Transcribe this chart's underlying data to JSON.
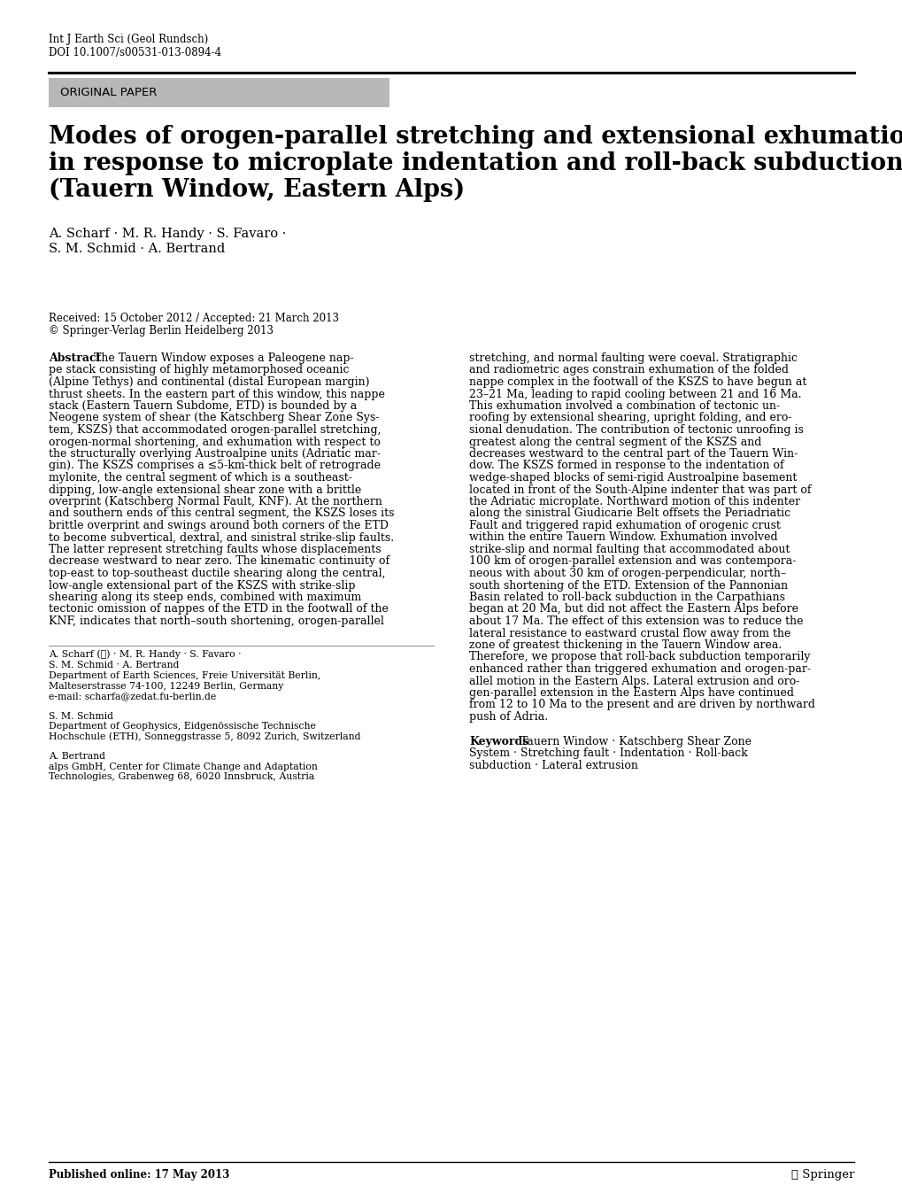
{
  "journal_line1": "Int J Earth Sci (Geol Rundsch)",
  "journal_line2": "DOI 10.1007/s00531-013-0894-4",
  "original_paper_label": "ORIGINAL PAPER",
  "title_line1": "Modes of orogen-parallel stretching and extensional exhumation",
  "title_line2": "in response to microplate indentation and roll-back subduction",
  "title_line3": "(Tauern Window, Eastern Alps)",
  "authors_line1": "A. Scharf · M. R. Handy · S. Favaro ·",
  "authors_line2": "S. M. Schmid · A. Bertrand",
  "received_line": "Received: 15 October 2012 / Accepted: 21 March 2013",
  "copyright_line": "© Springer-Verlag Berlin Heidelberg 2013",
  "abstract_label": "Abstract",
  "abstract_col1": "The Tauern Window exposes a Paleogene nap-\npe stack consisting of highly metamorphosed oceanic\n(Alpine Tethys) and continental (distal European margin)\nthrust sheets. In the eastern part of this window, this nappe\nstack (Eastern Tauern Subdome, ETD) is bounded by a\nNeogene system of shear (the Katschberg Shear Zone Sys-\ntem, KSZS) that accommodated orogen-parallel stretching,\norogen-normal shortening, and exhumation with respect to\nthe structurally overlying Austroalpine units (Adriatic mar-\ngin). The KSZS comprises a ≤5-km-thick belt of retrograde\nmylonite, the central segment of which is a southeast-\ndipping, low-angle extensional shear zone with a brittle\noverprint (Katschberg Normal Fault, KNF). At the northern\nand southern ends of this central segment, the KSZS loses its\nbrittle overprint and swings around both corners of the ETD\nto become subvertical, dextral, and sinistral strike-slip faults.\nThe latter represent stretching faults whose displacements\ndecrease westward to near zero. The kinematic continuity of\ntop-east to top-southeast ductile shearing along the central,\nlow-angle extensional part of the KSZS with strike-slip\nshearing along its steep ends, combined with maximum\ntectonic omission of nappes of the ETD in the footwall of the\nKNF, indicates that north–south shortening, orogen-parallel",
  "abstract_col2": "stretching, and normal faulting were coeval. Stratigraphic\nand radiometric ages constrain exhumation of the folded\nnappe complex in the footwall of the KSZS to have begun at\n23–21 Ma, leading to rapid cooling between 21 and 16 Ma.\nThis exhumation involved a combination of tectonic un-\nroofing by extensional shearing, upright folding, and ero-\nsional denudation. The contribution of tectonic unroofing is\ngreatest along the central segment of the KSZS and\ndecreases westward to the central part of the Tauern Win-\ndow. The KSZS formed in response to the indentation of\nwedge-shaped blocks of semi-rigid Austroalpine basement\nlocated in front of the South-Alpine indenter that was part of\nthe Adriatic microplate. Northward motion of this indenter\nalong the sinistral Giudicarie Belt offsets the Periadriatic\nFault and triggered rapid exhumation of orogenic crust\nwithin the entire Tauern Window. Exhumation involved\nstrike-slip and normal faulting that accommodated about\n100 km of orogen-parallel extension and was contempora-\nneous with about 30 km of orogen-perpendicular, north–\nsouth shortening of the ETD. Extension of the Pannonian\nBasin related to roll-back subduction in the Carpathians\nbegan at 20 Ma, but did not affect the Eastern Alps before\nabout 17 Ma. The effect of this extension was to reduce the\nlateral resistance to eastward crustal flow away from the\nzone of greatest thickening in the Tauern Window area.\nTherefore, we propose that roll-back subduction temporarily\nenhanced rather than triggered exhumation and orogen-par-\nallel motion in the Eastern Alps. Lateral extrusion and oro-\ngen-parallel extension in the Eastern Alps have continued\nfrom 12 to 10 Ma to the present and are driven by northward\npush of Adria.",
  "affiliations": "A. Scharf (✉) · M. R. Handy · S. Favaro ·\nS. M. Schmid · A. Bertrand\nDepartment of Earth Sciences, Freie Universität Berlin,\nMalteserstrasse 74-100, 12249 Berlin, Germany\ne-mail: scharfa@zedat.fu-berlin.de",
  "affil2": "S. M. Schmid\nDepartment of Geophysics, Eidgenössische Technische\nHochschule (ETH), Sonneggstrasse 5, 8092 Zurich, Switzerland",
  "affil3": "A. Bertrand\nalps GmbH, Center for Climate Change and Adaptation\nTechnologies, Grabenweg 68, 6020 Innsbruck, Austria",
  "published": "Published online: 17 May 2013",
  "springer_logo": "☂ Springer",
  "keywords_label": "Keywords",
  "keywords_text": "Tauern Window · Katschberg Shear Zone\nSystem · Stretching fault · Indentation · Roll-back\nsubduction · Lateral extrusion",
  "bg_color": "#ffffff",
  "header_bg": "#b8b8b8",
  "text_color": "#000000"
}
